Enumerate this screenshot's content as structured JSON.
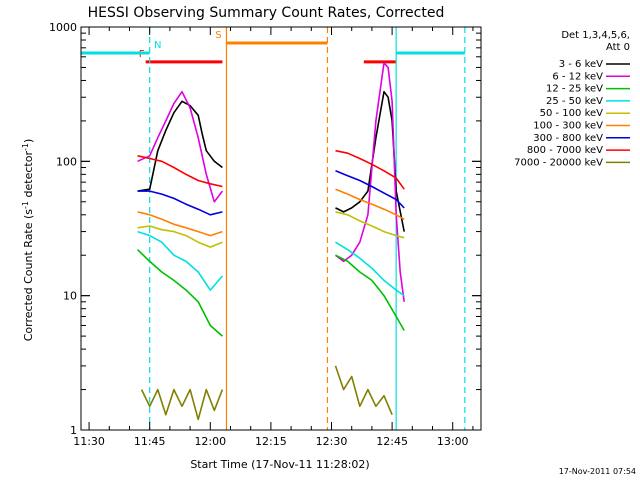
{
  "chart_data": {
    "type": "line",
    "title": "HESSI Observing Summary Count Rates, Corrected",
    "xlabel": "Start Time (17-Nov-11 11:28:02)",
    "ylabel": "Corrected Count Rate (s⁻¹ detector⁻¹)",
    "ylabel_main": "Corrected Count Rate (s",
    "ylabel_sup1": "-1",
    "ylabel_mid": " detector",
    "ylabel_sup2": "-1",
    "ylabel_end": ")",
    "y_scale": "log",
    "xlim": [
      "11:28",
      "13:07"
    ],
    "ylim": [
      1,
      1000
    ],
    "x_ticks": [
      "11:30",
      "11:45",
      "12:00",
      "12:15",
      "12:30",
      "12:45",
      "13:00"
    ],
    "y_ticks": [
      1,
      10,
      100,
      1000
    ],
    "legend_header": [
      "Det 1,3,4,5,6,",
      "Att 0"
    ],
    "legend_position": "right",
    "series": [
      {
        "name": "3 - 6 keV",
        "color": "#000000",
        "segments": [
          {
            "x": [
              "11:42",
              "11:45",
              "11:47",
              "11:49",
              "11:51",
              "11:53",
              "11:55",
              "11:57",
              "11:58",
              "11:59",
              "12:01",
              "12:03"
            ],
            "y": [
              60,
              62,
              120,
              170,
              230,
              280,
              260,
              220,
              160,
              120,
              100,
              90
            ]
          },
          {
            "x": [
              "12:31",
              "12:33",
              "12:35",
              "12:37",
              "12:39",
              "12:41",
              "12:43",
              "12:44",
              "12:45",
              "12:46",
              "12:48"
            ],
            "y": [
              45,
              42,
              45,
              50,
              60,
              150,
              330,
              300,
              200,
              60,
              30
            ]
          }
        ]
      },
      {
        "name": "6 - 12 keV",
        "color": "#e000e0",
        "segments": [
          {
            "x": [
              "11:42",
              "11:45",
              "11:47",
              "11:49",
              "11:51",
              "11:53",
              "11:55",
              "11:57",
              "11:59",
              "12:01",
              "12:03"
            ],
            "y": [
              100,
              110,
              150,
              200,
              270,
              330,
              250,
              150,
              80,
              50,
              60
            ]
          },
          {
            "x": [
              "12:31",
              "12:33",
              "12:35",
              "12:37",
              "12:39",
              "12:41",
              "12:43",
              "12:44",
              "12:45",
              "12:46",
              "12:47",
              "12:48"
            ],
            "y": [
              20,
              18,
              20,
              25,
              40,
              200,
              540,
              500,
              280,
              40,
              15,
              9
            ]
          }
        ]
      },
      {
        "name": "12 - 25 keV",
        "color": "#00c000",
        "segments": [
          {
            "x": [
              "11:42",
              "11:45",
              "11:48",
              "11:51",
              "11:54",
              "11:57",
              "12:00",
              "12:03"
            ],
            "y": [
              22,
              18,
              15,
              13,
              11,
              9,
              6,
              5
            ]
          },
          {
            "x": [
              "12:31",
              "12:34",
              "12:37",
              "12:40",
              "12:43",
              "12:46",
              "12:48"
            ],
            "y": [
              20,
              18,
              15,
              13,
              10,
              7,
              5.5
            ]
          }
        ]
      },
      {
        "name": "25 - 50 keV",
        "color": "#00e0e0",
        "segments": [
          {
            "x": [
              "11:42",
              "11:45",
              "11:48",
              "11:51",
              "11:54",
              "11:57",
              "12:00",
              "12:03"
            ],
            "y": [
              30,
              28,
              25,
              20,
              18,
              15,
              11,
              14
            ]
          },
          {
            "x": [
              "12:31",
              "12:34",
              "12:37",
              "12:40",
              "12:43",
              "12:46",
              "12:48"
            ],
            "y": [
              25,
              22,
              19,
              16,
              13,
              11,
              10
            ]
          }
        ]
      },
      {
        "name": "50 - 100 keV",
        "color": "#c0c000",
        "segments": [
          {
            "x": [
              "11:42",
              "11:45",
              "11:48",
              "11:51",
              "11:54",
              "11:57",
              "12:00",
              "12:03"
            ],
            "y": [
              32,
              33,
              31,
              30,
              28,
              25,
              23,
              25
            ]
          },
          {
            "x": [
              "12:31",
              "12:34",
              "12:37",
              "12:40",
              "12:43",
              "12:46",
              "12:48"
            ],
            "y": [
              42,
              40,
              36,
              33,
              30,
              28,
              27
            ]
          }
        ]
      },
      {
        "name": "100 - 300 keV",
        "color": "#ff8000",
        "segments": [
          {
            "x": [
              "11:42",
              "11:45",
              "11:48",
              "11:51",
              "11:54",
              "11:57",
              "12:00",
              "12:03"
            ],
            "y": [
              42,
              40,
              37,
              34,
              32,
              30,
              28,
              30
            ]
          },
          {
            "x": [
              "12:31",
              "12:34",
              "12:37",
              "12:40",
              "12:43",
              "12:46",
              "12:48"
            ],
            "y": [
              62,
              57,
              52,
              48,
              44,
              40,
              37
            ]
          }
        ]
      },
      {
        "name": "300 - 800 keV",
        "color": "#0000e0",
        "segments": [
          {
            "x": [
              "11:42",
              "11:45",
              "11:48",
              "11:51",
              "11:54",
              "11:57",
              "12:00",
              "12:03"
            ],
            "y": [
              60,
              60,
              57,
              53,
              48,
              44,
              40,
              42
            ]
          },
          {
            "x": [
              "12:31",
              "12:34",
              "12:37",
              "12:40",
              "12:43",
              "12:46",
              "12:48"
            ],
            "y": [
              85,
              78,
              72,
              65,
              58,
              52,
              45
            ]
          }
        ]
      },
      {
        "name": "800 - 7000 keV",
        "color": "#ff0000",
        "segments": [
          {
            "x": [
              "11:42",
              "11:45",
              "11:48",
              "11:51",
              "11:54",
              "11:57",
              "12:00",
              "12:03"
            ],
            "y": [
              110,
              105,
              100,
              90,
              80,
              72,
              68,
              65
            ]
          },
          {
            "x": [
              "12:31",
              "12:34",
              "12:37",
              "12:40",
              "12:43",
              "12:46",
              "12:48"
            ],
            "y": [
              120,
              115,
              105,
              95,
              85,
              75,
              62
            ]
          }
        ]
      },
      {
        "name": "7000 - 20000 keV",
        "color": "#808000",
        "segments": [
          {
            "x": [
              "11:43",
              "11:45",
              "11:47",
              "11:49",
              "11:51",
              "11:53",
              "11:55",
              "11:57",
              "11:59",
              "12:01",
              "12:03"
            ],
            "y": [
              2,
              1.5,
              2,
              1.3,
              2,
              1.5,
              2,
              1.2,
              2,
              1.4,
              2
            ]
          },
          {
            "x": [
              "12:31",
              "12:33",
              "12:35",
              "12:37",
              "12:39",
              "12:41",
              "12:43",
              "12:45"
            ],
            "y": [
              3,
              2,
              2.5,
              1.5,
              2,
              1.5,
              1.8,
              1.3
            ]
          }
        ]
      }
    ],
    "flags": [
      {
        "label": "F",
        "color": "#ff0000",
        "label_at": "11:43",
        "segments": [
          [
            "11:44",
            "12:03"
          ],
          [
            "12:38",
            "12:46"
          ]
        ],
        "y": 550
      },
      {
        "label": "N",
        "color": "#00e0e0",
        "label_at": "11:47",
        "segments": [
          [
            "11:28",
            "11:45"
          ],
          [
            "12:46",
            "13:03"
          ]
        ],
        "y": 640
      },
      {
        "label": "S",
        "color": "#ff8000",
        "label_at": "12:02",
        "segments": [
          [
            "12:04",
            "12:29"
          ]
        ],
        "y": 760
      }
    ],
    "vertical_lines": [
      {
        "x": "11:45",
        "color": "#00e0e0",
        "style": "dashed"
      },
      {
        "x": "12:46",
        "color": "#00e0e0",
        "style": "solid"
      },
      {
        "x": "13:03",
        "color": "#00e0e0",
        "style": "dashed"
      },
      {
        "x": "12:04",
        "color": "#ff8000",
        "style": "solid"
      },
      {
        "x": "12:29",
        "color": "#ff8000",
        "style": "dashed"
      }
    ],
    "timestamp": "17-Nov-2011 07:54"
  }
}
